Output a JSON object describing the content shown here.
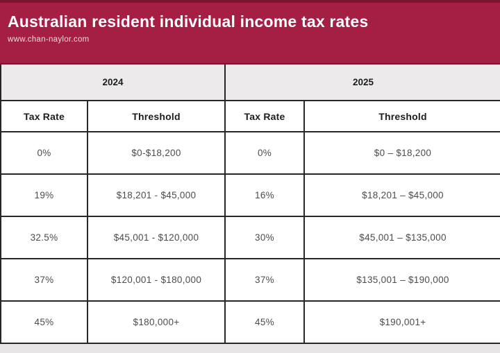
{
  "banner": {
    "title": "Australian resident individual income tax rates",
    "website": "www.chan-naylor.com"
  },
  "chart_data": {
    "type": "table",
    "title": "Australian resident individual income tax rates",
    "source_text": "www.chan-naylor.com",
    "column_groups": [
      "2024",
      "2025"
    ],
    "columns": [
      "Tax Rate",
      "Threshold",
      "Tax Rate",
      "Threshold"
    ],
    "rows": [
      [
        "0%",
        "$0-$18,200",
        "0%",
        "$0 – $18,200"
      ],
      [
        "19%",
        "$18,201 - $45,000",
        "16%",
        "$18,201 – $45,000"
      ],
      [
        "32.5%",
        "$45,001 - $120,000",
        "30%",
        "$45,001 – $135,000"
      ],
      [
        "37%",
        "$120,001 - $180,000",
        "37%",
        "$135,001 – $190,000"
      ],
      [
        "45%",
        "$180,000+",
        "45%",
        "$190,001+"
      ]
    ]
  },
  "colors": {
    "banner_bg": "#A51E44",
    "banner_top_edge": "#7A1430",
    "year_row_bg": "#ECEAEA",
    "border": "#262626",
    "cell_text": "#4C4C4C",
    "header_text": "#1D1D1D",
    "page_bg": "#E7E5E5"
  }
}
